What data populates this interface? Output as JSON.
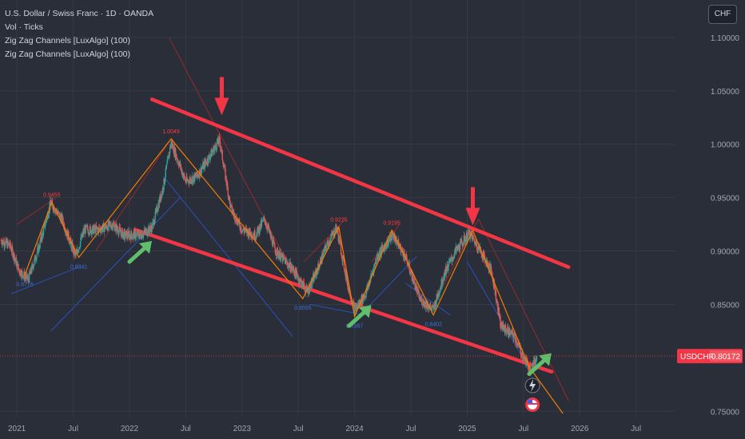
{
  "header": {
    "symbol": "U.S. Dollar / Swiss Franc · 1D · OANDA",
    "line2": "Vol · Ticks",
    "line3": "Zig Zag Channels [LuxAlgo] (100)",
    "line4": "Zig Zag Channels [LuxAlgo] (100)",
    "currency_button": "CHF"
  },
  "colors": {
    "background": "#2a2e39",
    "grid": "#363a45",
    "text": "#d1d4dc",
    "axis_text": "#a3a6af",
    "candle_up": "#26a69a",
    "candle_down": "#ef5350",
    "zigzag": "#f57c00",
    "channel_main": "#f23645",
    "channel_thin_red": "#c62828",
    "channel_thin_blue": "#2962ff",
    "arrow_red": "#f23645",
    "arrow_green": "#5fbf6a",
    "price_tag": "#f23645"
  },
  "price_tag": {
    "symbol": "USDCHF",
    "value": "0.80172"
  },
  "chart_data": {
    "type": "candlestick",
    "title": "U.S. Dollar / Swiss Franc · 1D · OANDA",
    "y_axis": {
      "position": "right",
      "ticks": [
        1.1,
        1.05,
        1.0,
        0.95,
        0.9,
        0.85,
        0.75
      ],
      "tick_labels": [
        "1.10000",
        "1.05000",
        "1.00000",
        "0.95000",
        "0.90000",
        "0.85000",
        "0.75000"
      ],
      "range": [
        0.745,
        1.135
      ]
    },
    "x_axis": {
      "ticks": [
        {
          "label": "2021",
          "t": 2021.0
        },
        {
          "label": "Jul",
          "t": 2021.5
        },
        {
          "label": "2022",
          "t": 2022.0
        },
        {
          "label": "Jul",
          "t": 2022.5
        },
        {
          "label": "2023",
          "t": 2023.0
        },
        {
          "label": "Jul",
          "t": 2023.5
        },
        {
          "label": "2024",
          "t": 2024.0
        },
        {
          "label": "Jul",
          "t": 2024.5
        },
        {
          "label": "2025",
          "t": 2025.0
        },
        {
          "label": "Jul",
          "t": 2025.5
        },
        {
          "label": "2026",
          "t": 2026.0
        },
        {
          "label": "Jul",
          "t": 2026.5
        }
      ],
      "range": [
        2020.85,
        2026.85
      ]
    },
    "price_path": [
      [
        2020.86,
        0.91
      ],
      [
        2020.94,
        0.905
      ],
      [
        2021.02,
        0.882
      ],
      [
        2021.1,
        0.873
      ],
      [
        2021.2,
        0.905
      ],
      [
        2021.3,
        0.945
      ],
      [
        2021.4,
        0.93
      ],
      [
        2021.52,
        0.895
      ],
      [
        2021.6,
        0.92
      ],
      [
        2021.72,
        0.92
      ],
      [
        2021.85,
        0.925
      ],
      [
        2021.95,
        0.915
      ],
      [
        2022.1,
        0.915
      ],
      [
        2022.2,
        0.922
      ],
      [
        2022.3,
        0.96
      ],
      [
        2022.37,
        1.002
      ],
      [
        2022.5,
        0.965
      ],
      [
        2022.6,
        0.97
      ],
      [
        2022.72,
        0.99
      ],
      [
        2022.8,
        1.004
      ],
      [
        2022.9,
        0.94
      ],
      [
        2023.0,
        0.92
      ],
      [
        2023.12,
        0.915
      ],
      [
        2023.2,
        0.93
      ],
      [
        2023.3,
        0.9
      ],
      [
        2023.45,
        0.883
      ],
      [
        2023.58,
        0.862
      ],
      [
        2023.66,
        0.88
      ],
      [
        2023.75,
        0.905
      ],
      [
        2023.84,
        0.922
      ],
      [
        2023.94,
        0.868
      ],
      [
        2024.0,
        0.845
      ],
      [
        2024.1,
        0.86
      ],
      [
        2024.2,
        0.895
      ],
      [
        2024.34,
        0.915
      ],
      [
        2024.45,
        0.895
      ],
      [
        2024.58,
        0.855
      ],
      [
        2024.7,
        0.845
      ],
      [
        2024.8,
        0.88
      ],
      [
        2024.9,
        0.9
      ],
      [
        2025.02,
        0.917
      ],
      [
        2025.12,
        0.9
      ],
      [
        2025.22,
        0.88
      ],
      [
        2025.3,
        0.83
      ],
      [
        2025.42,
        0.82
      ],
      [
        2025.5,
        0.8
      ],
      [
        2025.56,
        0.79
      ],
      [
        2025.62,
        0.8
      ]
    ],
    "last_price": 0.80172,
    "zigzag_points": [
      [
        2021.07,
        0.8776,
        "0.8776"
      ],
      [
        2021.31,
        0.9455,
        "0.9455"
      ],
      [
        2021.55,
        0.8941,
        "0.8941"
      ],
      [
        2022.37,
        1.0049,
        "1.0049"
      ],
      [
        2023.54,
        0.8555,
        "0.8555"
      ],
      [
        2023.86,
        0.9225,
        "0.9225"
      ],
      [
        2024.0,
        0.8387,
        "0.8387"
      ],
      [
        2024.33,
        0.9195,
        "0.9195"
      ],
      [
        2024.7,
        0.8402,
        "0.8402"
      ],
      [
        2025.05,
        0.9192,
        ""
      ],
      [
        2025.55,
        0.7916,
        ""
      ]
    ],
    "channel_lines": [
      {
        "name": "upper",
        "from": [
          2022.2,
          1.042
        ],
        "to": [
          2025.9,
          0.885
        ]
      },
      {
        "name": "lower",
        "from": [
          2022.05,
          0.92
        ],
        "to": [
          2025.75,
          0.787
        ]
      }
    ],
    "red_arrows": [
      [
        2022.82,
        1.027
      ],
      [
        2025.05,
        0.924
      ]
    ],
    "green_arrows": [
      [
        2022.0,
        0.89
      ],
      [
        2023.95,
        0.83
      ],
      [
        2025.55,
        0.785
      ]
    ],
    "grid": true
  }
}
